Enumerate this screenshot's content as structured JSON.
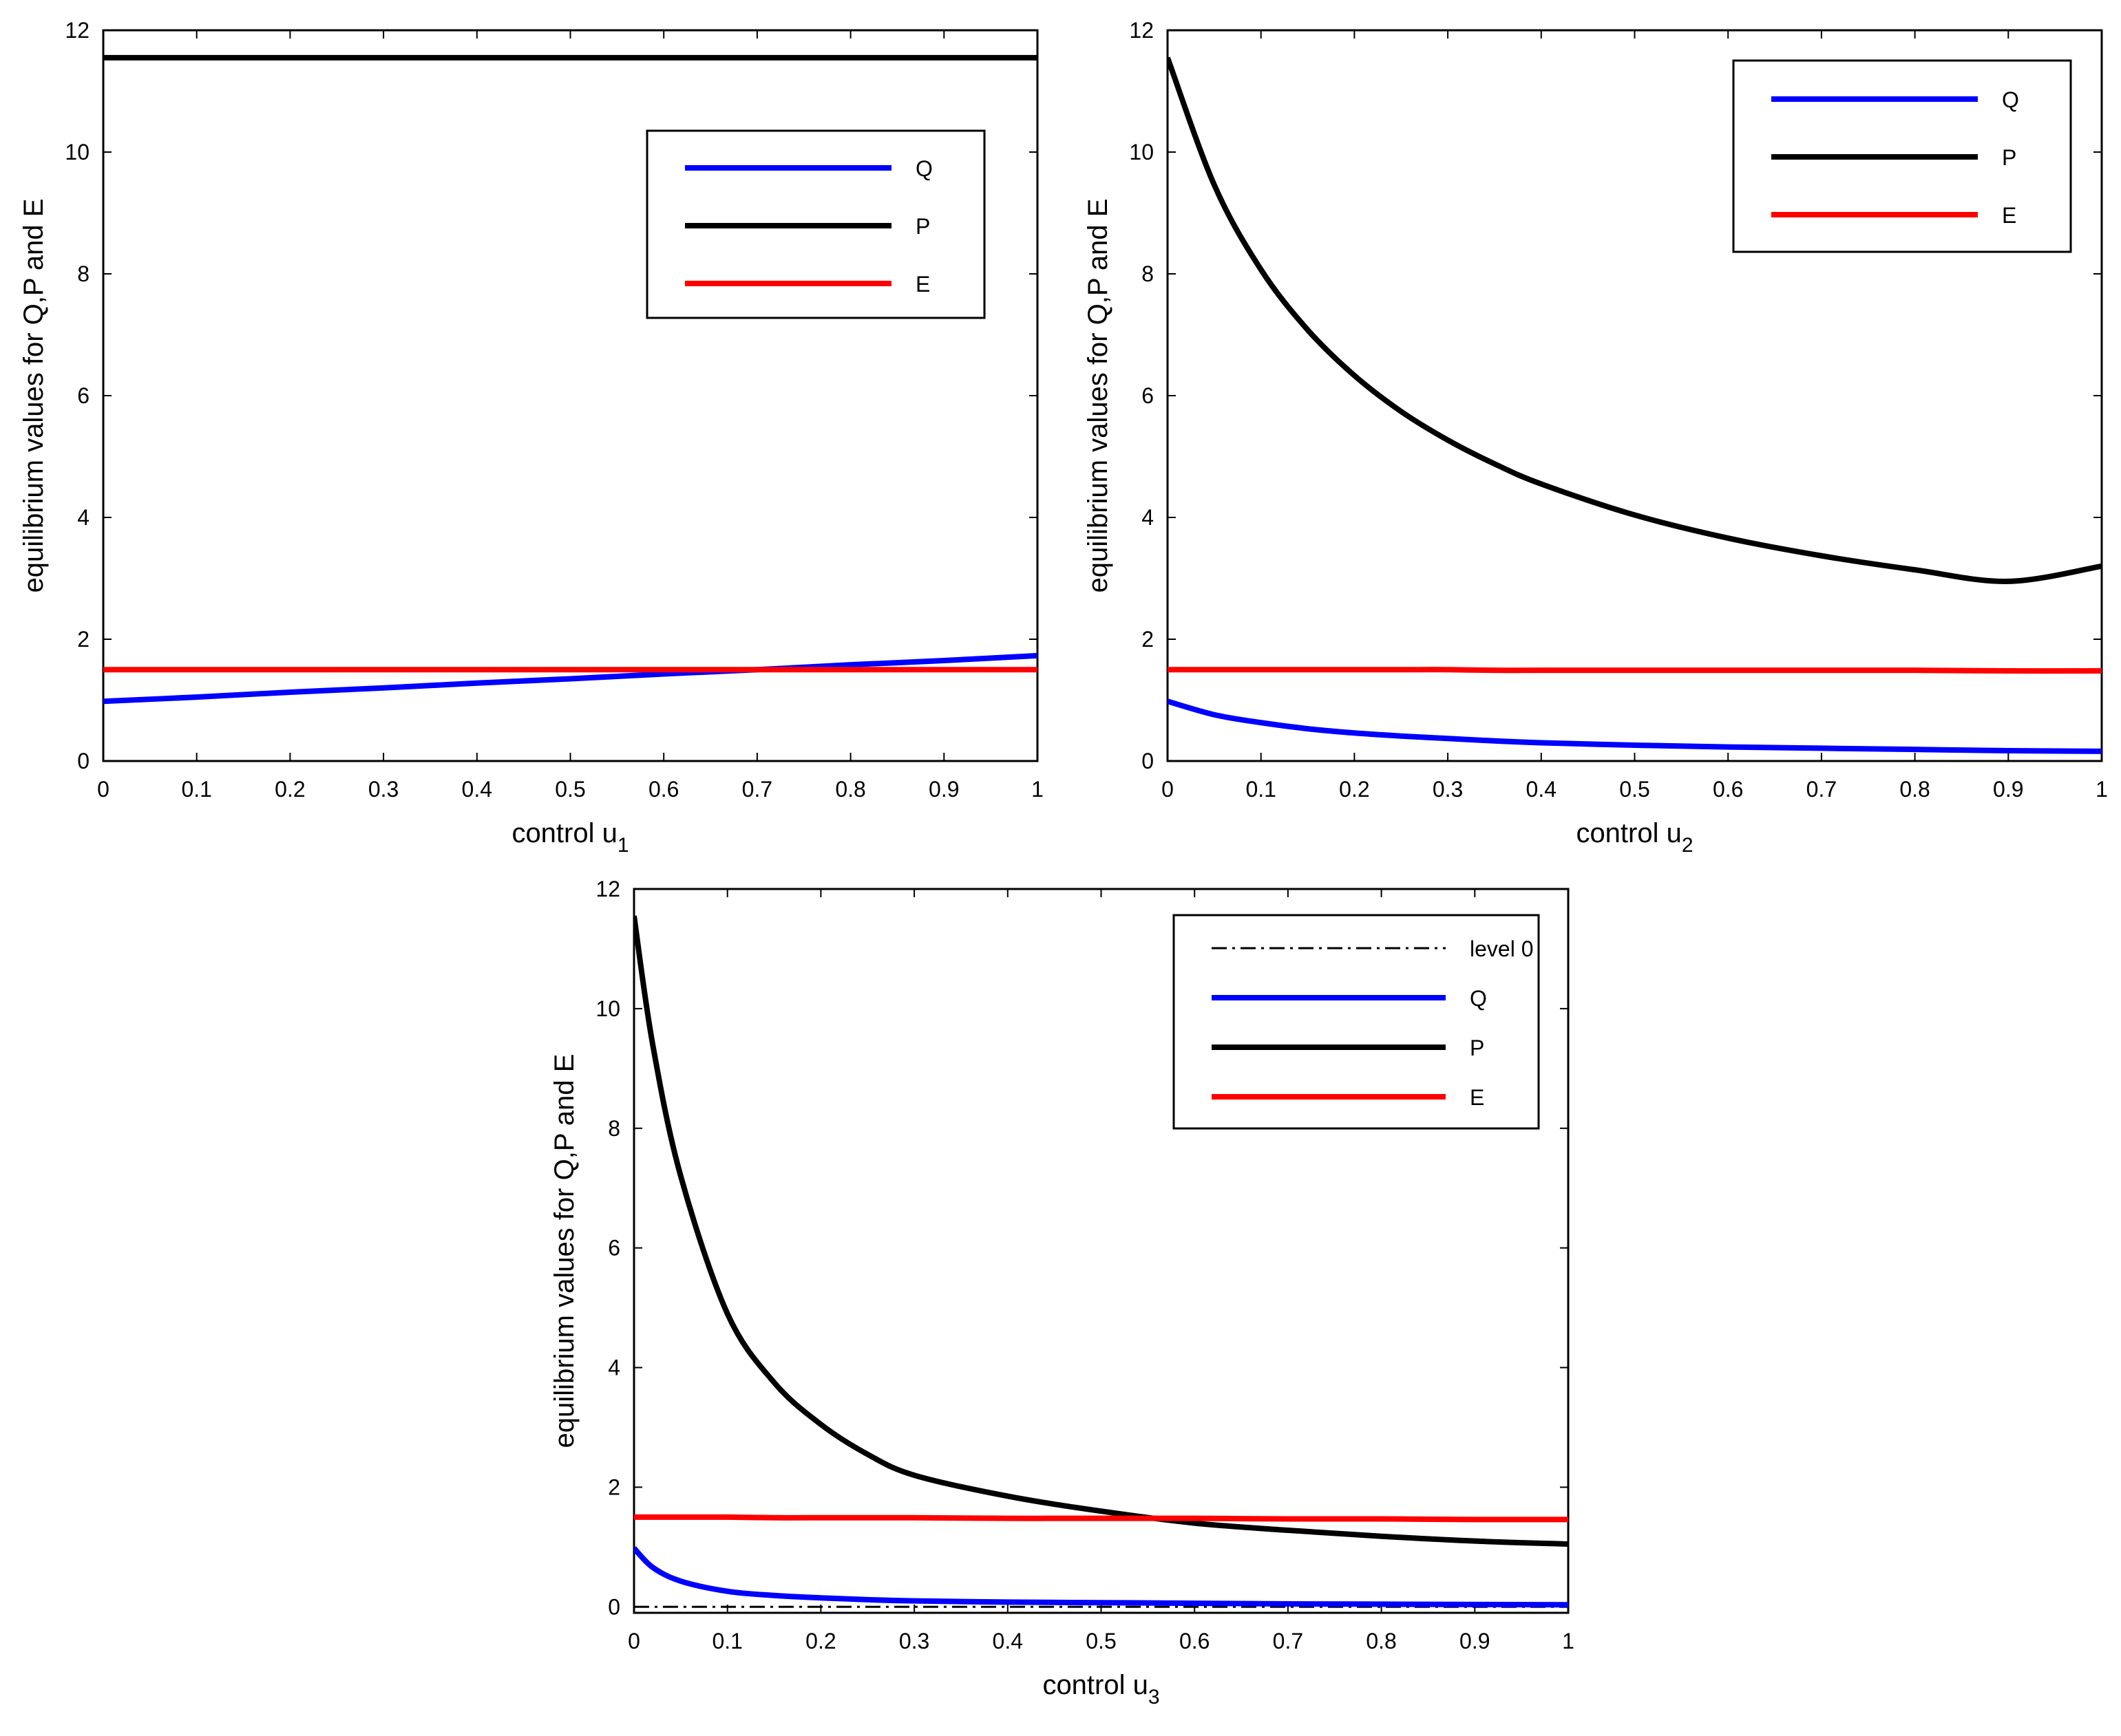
{
  "figure": {
    "colors": {
      "Q": "#0000ff",
      "P": "#000000",
      "E": "#ff0000",
      "level0": "#000000"
    }
  },
  "chart_data": [
    {
      "type": "line",
      "id": "plot1",
      "xlabel_main": "control u",
      "xlabel_sub": "1",
      "ylabel": "equilibrium values for Q,P and E",
      "xlim": [
        0,
        1
      ],
      "ylim": [
        0,
        12
      ],
      "xticks": [
        0,
        0.1,
        0.2,
        0.3,
        0.4,
        0.5,
        0.6,
        0.7,
        0.8,
        0.9,
        1
      ],
      "xtick_labels": [
        "0",
        "0.1",
        "0.2",
        "0.3",
        "0.4",
        "0.5",
        "0.6",
        "0.7",
        "0.8",
        "0.9",
        "1"
      ],
      "yticks": [
        0,
        2,
        4,
        6,
        8,
        10,
        12
      ],
      "ytick_labels": [
        "0",
        "2",
        "4",
        "6",
        "8",
        "10",
        "12"
      ],
      "legend_position": "upper-right",
      "x": [
        0,
        0.1,
        0.2,
        0.3,
        0.4,
        0.5,
        0.6,
        0.7,
        0.8,
        0.9,
        1
      ],
      "series": [
        {
          "name": "Q",
          "color": "#0000ff",
          "values": [
            0.98,
            1.05,
            1.13,
            1.2,
            1.28,
            1.35,
            1.43,
            1.5,
            1.58,
            1.65,
            1.73
          ]
        },
        {
          "name": "P",
          "color": "#000000",
          "values": [
            11.55,
            11.55,
            11.55,
            11.55,
            11.55,
            11.55,
            11.55,
            11.55,
            11.55,
            11.55,
            11.55
          ]
        },
        {
          "name": "E",
          "color": "#ff0000",
          "values": [
            1.5,
            1.5,
            1.5,
            1.5,
            1.5,
            1.5,
            1.5,
            1.5,
            1.5,
            1.5,
            1.5
          ]
        }
      ]
    },
    {
      "type": "line",
      "id": "plot2",
      "xlabel_main": "control u",
      "xlabel_sub": "2",
      "ylabel": "equilibrium values for Q,P and E",
      "xlim": [
        0,
        1
      ],
      "ylim": [
        0,
        12
      ],
      "xticks": [
        0,
        0.1,
        0.2,
        0.3,
        0.4,
        0.5,
        0.6,
        0.7,
        0.8,
        0.9,
        1
      ],
      "xtick_labels": [
        "0",
        "0.1",
        "0.2",
        "0.3",
        "0.4",
        "0.5",
        "0.6",
        "0.7",
        "0.8",
        "0.9",
        "1"
      ],
      "yticks": [
        0,
        2,
        4,
        6,
        8,
        10,
        12
      ],
      "ytick_labels": [
        "0",
        "2",
        "4",
        "6",
        "8",
        "10",
        "12"
      ],
      "legend_position": "upper-right",
      "x": [
        0,
        0.05,
        0.1,
        0.15,
        0.2,
        0.25,
        0.3,
        0.35,
        0.4,
        0.5,
        0.6,
        0.7,
        0.8,
        0.9,
        1
      ],
      "series": [
        {
          "name": "Q",
          "color": "#0000ff",
          "values": [
            0.98,
            0.76,
            0.63,
            0.53,
            0.46,
            0.41,
            0.37,
            0.33,
            0.3,
            0.26,
            0.23,
            0.21,
            0.19,
            0.17,
            0.16
          ]
        },
        {
          "name": "P",
          "color": "#000000",
          "values": [
            11.55,
            9.46,
            8.07,
            7.08,
            6.33,
            5.74,
            5.27,
            4.88,
            4.55,
            4.04,
            3.66,
            3.37,
            3.14,
            2.95,
            3.2
          ]
        },
        {
          "name": "E",
          "color": "#ff0000",
          "values": [
            1.5,
            1.5,
            1.5,
            1.5,
            1.5,
            1.5,
            1.5,
            1.49,
            1.49,
            1.49,
            1.49,
            1.49,
            1.49,
            1.48,
            1.48
          ]
        }
      ]
    },
    {
      "type": "line",
      "id": "plot3",
      "xlabel_main": "control u",
      "xlabel_sub": "3",
      "ylabel": "equilibrium values for Q,P and E",
      "xlim": [
        0,
        1
      ],
      "ylim": [
        -0.1,
        12
      ],
      "xticks": [
        0,
        0.1,
        0.2,
        0.3,
        0.4,
        0.5,
        0.6,
        0.7,
        0.8,
        0.9,
        1
      ],
      "xtick_labels": [
        "0",
        "0.1",
        "0.2",
        "0.3",
        "0.4",
        "0.5",
        "0.6",
        "0.7",
        "0.8",
        "0.9",
        "1"
      ],
      "yticks": [
        0,
        2,
        4,
        6,
        8,
        10,
        12
      ],
      "ytick_labels": [
        "0",
        "2",
        "4",
        "6",
        "8",
        "10",
        "12"
      ],
      "legend_position": "upper-right",
      "x": [
        0,
        0.02,
        0.05,
        0.1,
        0.15,
        0.2,
        0.25,
        0.3,
        0.4,
        0.5,
        0.6,
        0.7,
        0.8,
        0.9,
        1
      ],
      "series": [
        {
          "name": "level 0",
          "color": "#000000",
          "style": "dashdot",
          "values": [
            0,
            0,
            0,
            0,
            0,
            0,
            0,
            0,
            0,
            0,
            0,
            0,
            0,
            0,
            0
          ]
        },
        {
          "name": "Q",
          "color": "#0000ff",
          "values": [
            0.98,
            0.66,
            0.43,
            0.26,
            0.19,
            0.15,
            0.12,
            0.1,
            0.08,
            0.07,
            0.06,
            0.05,
            0.045,
            0.04,
            0.035
          ]
        },
        {
          "name": "P",
          "color": "#000000",
          "values": [
            11.55,
            9.4,
            7.2,
            4.9,
            3.75,
            3.05,
            2.55,
            2.2,
            1.85,
            1.6,
            1.4,
            1.28,
            1.18,
            1.1,
            1.05
          ]
        },
        {
          "name": "E",
          "color": "#ff0000",
          "values": [
            1.5,
            1.5,
            1.5,
            1.5,
            1.49,
            1.49,
            1.49,
            1.49,
            1.48,
            1.48,
            1.48,
            1.47,
            1.47,
            1.46,
            1.46
          ]
        }
      ]
    }
  ]
}
